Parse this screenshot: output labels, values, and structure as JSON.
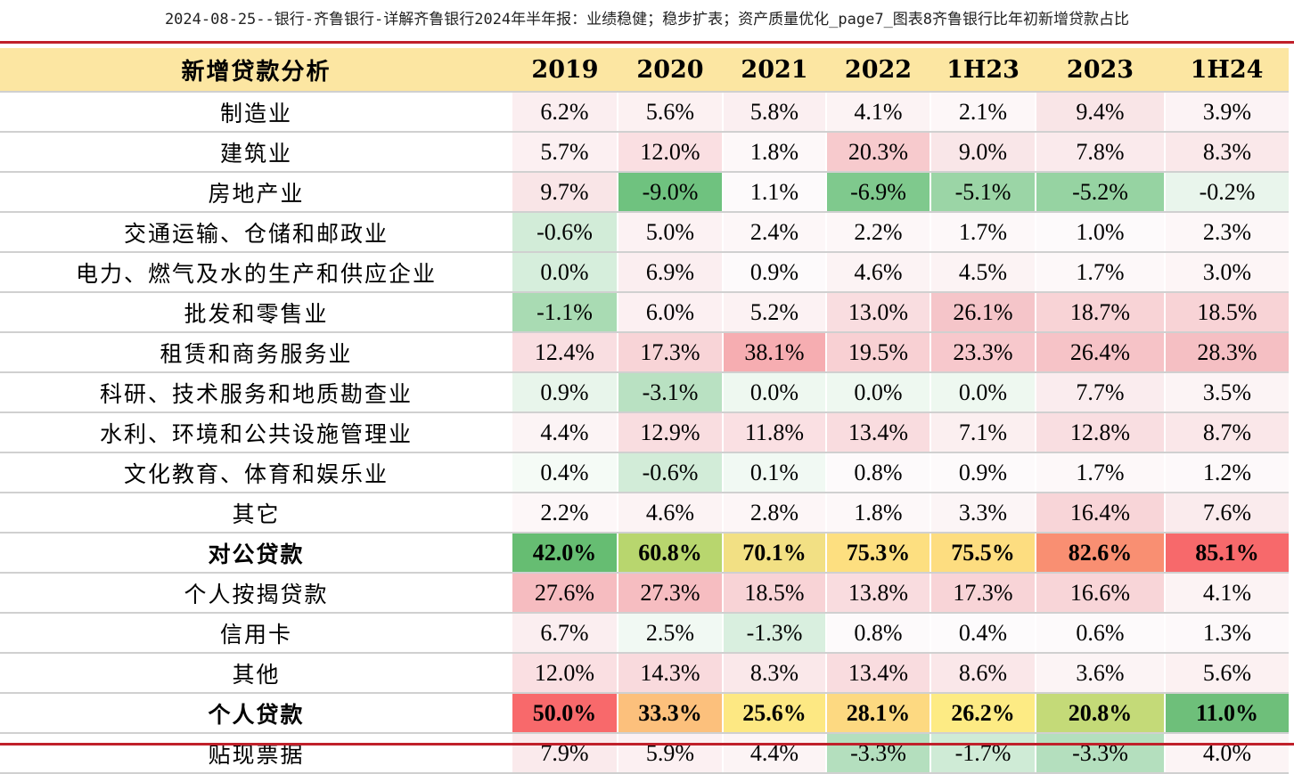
{
  "caption": "2024-08-25--银行-齐鲁银行-详解齐鲁银行2024年半年报：业绩稳健；稳步扩表；资产质量优化_page7_图表8齐鲁银行比年初新增贷款占比",
  "table": {
    "header": {
      "label": "新增贷款分析",
      "periods": [
        "2019",
        "2020",
        "2021",
        "2022",
        "1H23",
        "2023",
        "1H24"
      ]
    },
    "rows": [
      {
        "name": "制造业",
        "bold": false,
        "values": [
          "6.2%",
          "5.6%",
          "5.8%",
          "4.1%",
          "2.1%",
          "9.4%",
          "3.9%"
        ],
        "colors": [
          "#fbeef0",
          "#fcf1f2",
          "#fbeff1",
          "#fcf3f4",
          "#fdf7f8",
          "#f9e5e7",
          "#fcf3f5"
        ]
      },
      {
        "name": "建筑业",
        "bold": false,
        "values": [
          "5.7%",
          "12.0%",
          "1.8%",
          "20.3%",
          "9.0%",
          "7.8%",
          "8.3%"
        ],
        "colors": [
          "#fcf0f2",
          "#fadfe2",
          "#fdf8f9",
          "#f7cacd",
          "#f9e6e8",
          "#faeaec",
          "#fae8ea"
        ]
      },
      {
        "name": "房地产业",
        "bold": false,
        "values": [
          "9.7%",
          "-9.0%",
          "1.1%",
          "-6.9%",
          "-5.1%",
          "-5.2%",
          "-0.2%"
        ],
        "colors": [
          "#f9e5e7",
          "#6fc27f",
          "#fdfafb",
          "#7fc98d",
          "#9bd5a6",
          "#96d3a2",
          "#e9f5ec"
        ]
      },
      {
        "name": "交通运输、仓储和邮政业",
        "bold": false,
        "values": [
          "-0.6%",
          "5.0%",
          "2.4%",
          "2.2%",
          "1.7%",
          "1.0%",
          "2.3%"
        ],
        "colors": [
          "#d2ecd8",
          "#fcf2f3",
          "#fdf7f8",
          "#fdf7f8",
          "#fdf8f9",
          "#fdfafb",
          "#fdf7f8"
        ]
      },
      {
        "name": "电力、燃气及水的生产和供应企业",
        "bold": false,
        "values": [
          "0.0%",
          "6.9%",
          "0.9%",
          "4.6%",
          "4.5%",
          "1.7%",
          "3.0%"
        ],
        "colors": [
          "#d6eedc",
          "#fbeef0",
          "#fdfafb",
          "#fcf3f4",
          "#fcf3f4",
          "#fdf8f9",
          "#fdf5f6"
        ]
      },
      {
        "name": "批发和零售业",
        "bold": false,
        "values": [
          "-1.1%",
          "6.0%",
          "5.2%",
          "13.0%",
          "26.1%",
          "18.7%",
          "18.5%"
        ],
        "colors": [
          "#a9dbb3",
          "#fcf0f2",
          "#fcf2f3",
          "#f9dde0",
          "#f5c5c9",
          "#f8d3d6",
          "#f8d3d6"
        ]
      },
      {
        "name": "租赁和商务服务业",
        "bold": false,
        "values": [
          "12.4%",
          "17.3%",
          "38.1%",
          "19.5%",
          "23.3%",
          "26.4%",
          "28.3%"
        ],
        "colors": [
          "#f9dee1",
          "#f8d4d7",
          "#f6adb1",
          "#f8d0d3",
          "#f7c8cc",
          "#f6c3c7",
          "#f5bfc3"
        ]
      },
      {
        "name": "科研、技术服务和地质勘查业",
        "bold": false,
        "values": [
          "0.9%",
          "-3.1%",
          "0.0%",
          "0.0%",
          "0.0%",
          "7.7%",
          "3.5%"
        ],
        "colors": [
          "#e8f5eb",
          "#b9e1c2",
          "#eef8f0",
          "#eef8f0",
          "#eef8f0",
          "#faecee",
          "#fcf4f5"
        ]
      },
      {
        "name": "水利、环境和公共设施管理业",
        "bold": false,
        "values": [
          "4.4%",
          "12.9%",
          "11.8%",
          "13.4%",
          "7.1%",
          "12.8%",
          "8.7%"
        ],
        "colors": [
          "#fcf4f5",
          "#f9dde0",
          "#fae0e3",
          "#f9dcdf",
          "#fbeff0",
          "#f9dee1",
          "#fae7e9"
        ]
      },
      {
        "name": "文化教育、体育和娱乐业",
        "bold": false,
        "values": [
          "0.4%",
          "-0.6%",
          "0.1%",
          "0.8%",
          "0.9%",
          "1.7%",
          "1.2%"
        ],
        "colors": [
          "#f5fbf6",
          "#d2ecd8",
          "#f1f9f3",
          "#fdfafb",
          "#fdfafb",
          "#fdf8f9",
          "#fdf9fa"
        ]
      },
      {
        "name": "其它",
        "bold": false,
        "values": [
          "2.2%",
          "4.6%",
          "2.8%",
          "1.8%",
          "3.3%",
          "16.4%",
          "7.6%"
        ],
        "colors": [
          "#fdf7f8",
          "#fcf3f4",
          "#fdf6f7",
          "#fdf8f9",
          "#fcf5f6",
          "#f8d5d8",
          "#faebed"
        ]
      },
      {
        "name": "对公贷款",
        "bold": true,
        "values": [
          "42.0%",
          "60.8%",
          "70.1%",
          "75.3%",
          "75.5%",
          "82.6%",
          "85.1%"
        ],
        "colors": [
          "#66bd72",
          "#b8d66e",
          "#f2e084",
          "#fddf80",
          "#fddd80",
          "#f98f72",
          "#f7696b"
        ]
      },
      {
        "name": "个人按揭贷款",
        "bold": false,
        "values": [
          "27.6%",
          "27.3%",
          "18.5%",
          "13.8%",
          "17.3%",
          "16.6%",
          "4.1%"
        ],
        "colors": [
          "#f6bcc0",
          "#f6bdc1",
          "#f8d3d6",
          "#f9dcdf",
          "#f8d4d7",
          "#f8d5d8",
          "#fcf3f4"
        ]
      },
      {
        "name": "信用卡",
        "bold": false,
        "values": [
          "6.7%",
          "2.5%",
          "-1.3%",
          "0.8%",
          "0.4%",
          "0.6%",
          "1.3%"
        ],
        "colors": [
          "#fbeef0",
          "#f1f9f3",
          "#d9efdf",
          "#fdfafb",
          "#fdfbfc",
          "#fdfafb",
          "#fdf9fa"
        ]
      },
      {
        "name": "其他",
        "bold": false,
        "values": [
          "12.0%",
          "14.3%",
          "8.3%",
          "13.4%",
          "8.6%",
          "3.6%",
          "5.6%"
        ],
        "colors": [
          "#fadfe2",
          "#f9dadd",
          "#fae8ea",
          "#f9dcdf",
          "#fae7e9",
          "#fcf4f5",
          "#fcf1f2"
        ]
      },
      {
        "name": "个人贷款",
        "bold": true,
        "values": [
          "50.0%",
          "33.3%",
          "25.6%",
          "28.1%",
          "26.2%",
          "20.8%",
          "11.0%"
        ],
        "colors": [
          "#f8696b",
          "#fcc07c",
          "#fde883",
          "#fdd981",
          "#fdeb84",
          "#c4da78",
          "#6ebf7a"
        ]
      },
      {
        "name": "贴现票据",
        "bold": false,
        "values": [
          "7.9%",
          "5.9%",
          "4.4%",
          "-3.3%",
          "-1.7%",
          "-3.3%",
          "4.0%"
        ],
        "colors": [
          "#faeaec",
          "#fcf0f2",
          "#fcf4f5",
          "#b4dfbe",
          "#cfebd6",
          "#b4dfbe",
          "#fcf4f5"
        ]
      }
    ]
  }
}
